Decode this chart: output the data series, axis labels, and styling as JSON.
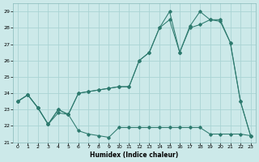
{
  "xlabel": "Humidex (Indice chaleur)",
  "bg_color": "#cce9e9",
  "grid_color": "#aad4d4",
  "line_color": "#2d7a6e",
  "xlim": [
    -0.5,
    23.5
  ],
  "ylim": [
    21,
    29.5
  ],
  "yticks": [
    21,
    22,
    23,
    24,
    25,
    26,
    27,
    28,
    29
  ],
  "xticks": [
    0,
    1,
    2,
    3,
    4,
    5,
    6,
    7,
    8,
    9,
    10,
    11,
    12,
    13,
    14,
    15,
    16,
    17,
    18,
    19,
    20,
    21,
    22,
    23
  ],
  "series1_x": [
    0,
    1,
    2,
    3,
    4,
    5,
    6,
    7,
    8,
    9,
    10,
    11,
    12,
    13,
    14,
    15,
    16,
    17,
    18,
    19,
    20,
    21,
    22,
    23
  ],
  "series1_y": [
    23.5,
    23.9,
    23.1,
    22.1,
    22.8,
    22.7,
    21.7,
    21.5,
    21.4,
    21.3,
    21.9,
    21.9,
    21.9,
    21.9,
    21.9,
    21.9,
    21.9,
    21.9,
    21.9,
    21.5,
    21.5,
    21.5,
    21.5,
    21.4
  ],
  "series2_x": [
    0,
    1,
    2,
    3,
    4,
    5,
    6,
    7,
    8,
    9,
    10,
    11,
    12,
    13,
    14,
    15,
    16,
    17,
    18,
    19,
    20,
    21,
    22,
    23
  ],
  "series2_y": [
    23.5,
    23.9,
    23.1,
    22.1,
    23.0,
    22.7,
    24.0,
    24.1,
    24.2,
    24.3,
    24.4,
    24.4,
    26.0,
    26.5,
    28.0,
    28.5,
    26.5,
    28.0,
    28.2,
    28.5,
    28.4,
    27.1,
    23.5,
    21.4
  ],
  "series3_x": [
    0,
    1,
    2,
    3,
    4,
    5,
    6,
    7,
    8,
    9,
    10,
    11,
    12,
    13,
    14,
    15,
    16,
    17,
    18,
    19,
    20,
    21,
    22,
    23
  ],
  "series3_y": [
    23.5,
    23.9,
    23.1,
    22.1,
    23.0,
    22.7,
    24.0,
    24.1,
    24.2,
    24.3,
    24.4,
    24.4,
    26.0,
    26.5,
    28.0,
    29.0,
    26.5,
    28.1,
    29.0,
    28.5,
    28.5,
    27.1,
    23.5,
    21.4
  ]
}
